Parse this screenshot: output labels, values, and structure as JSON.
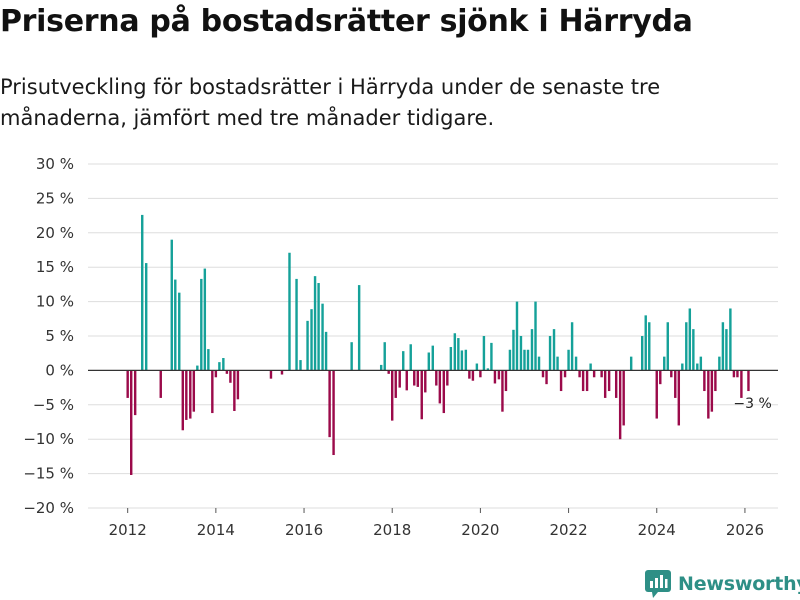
{
  "header": {
    "title": "Priserna på bostadsrätter sjönk i Härryda",
    "subtitle": "Prisutveckling för bostadsrätter i Härryda under de senaste tre månaderna, jämfört med tre månader tidigare."
  },
  "brand": {
    "name": "Newsworthy",
    "color": "#2e8f86"
  },
  "colors": {
    "positive": "#15a199",
    "negative": "#9b0a4a",
    "grid": "#dddddd",
    "zero_line": "#333333"
  },
  "chart_data": {
    "type": "bar",
    "title": "Priserna på bostadsrätter sjönk i Härryda",
    "xlabel": "",
    "ylabel": "",
    "xlim": [
      2011.1,
      2026.75
    ],
    "ylim": [
      -20,
      30
    ],
    "y_ticks": [
      30,
      25,
      20,
      15,
      10,
      5,
      0,
      -5,
      -10,
      -15,
      -20
    ],
    "y_tick_labels": [
      "30 %",
      "25 %",
      "20 %",
      "15 %",
      "10 %",
      "5 %",
      "0 %",
      "−5 %",
      "−10 %",
      "−15 %",
      "−20 %"
    ],
    "x_ticks": [
      2012,
      2014,
      2016,
      2018,
      2020,
      2022,
      2024,
      2026
    ],
    "x_tick_labels": [
      "2012",
      "2014",
      "2016",
      "2018",
      "2020",
      "2022",
      "2024",
      "2026"
    ],
    "grid": true,
    "unit": "%",
    "bar_width_years": 0.055,
    "annotation": {
      "text": "−3 %",
      "x": 2025.92,
      "y": -3
    },
    "series": [
      {
        "name": "Prisutveckling",
        "points": [
          [
            2012.0,
            -4
          ],
          [
            2012.08,
            -15.2
          ],
          [
            2012.17,
            -6.5
          ],
          [
            2012.33,
            22.6
          ],
          [
            2012.42,
            15.6
          ],
          [
            2012.75,
            -4
          ],
          [
            2013.0,
            19.0
          ],
          [
            2013.08,
            13.2
          ],
          [
            2013.17,
            11.3
          ],
          [
            2013.25,
            -8.7
          ],
          [
            2013.33,
            -7.2
          ],
          [
            2013.42,
            -7.0
          ],
          [
            2013.5,
            -6.0
          ],
          [
            2013.58,
            0.7
          ],
          [
            2013.67,
            13.3
          ],
          [
            2013.75,
            14.8
          ],
          [
            2013.83,
            3.1
          ],
          [
            2013.92,
            -6.2
          ],
          [
            2014.0,
            -1.0
          ],
          [
            2014.08,
            1.2
          ],
          [
            2014.17,
            1.8
          ],
          [
            2014.25,
            -0.5
          ],
          [
            2014.33,
            -1.8
          ],
          [
            2014.42,
            -5.9
          ],
          [
            2014.5,
            -4.2
          ],
          [
            2015.25,
            -1.2
          ],
          [
            2015.5,
            -0.6
          ],
          [
            2015.67,
            17.1
          ],
          [
            2015.83,
            13.3
          ],
          [
            2015.92,
            1.5
          ],
          [
            2016.08,
            7.2
          ],
          [
            2016.17,
            8.9
          ],
          [
            2016.25,
            13.7
          ],
          [
            2016.33,
            12.7
          ],
          [
            2016.42,
            9.7
          ],
          [
            2016.5,
            5.6
          ],
          [
            2016.58,
            -9.7
          ],
          [
            2016.67,
            -12.3
          ],
          [
            2017.08,
            4.1
          ],
          [
            2017.25,
            12.4
          ],
          [
            2017.75,
            0.8
          ],
          [
            2017.83,
            4.1
          ],
          [
            2017.92,
            -0.5
          ],
          [
            2018.0,
            -7.3
          ],
          [
            2018.08,
            -4.0
          ],
          [
            2018.17,
            -2.5
          ],
          [
            2018.25,
            2.8
          ],
          [
            2018.33,
            -2.9
          ],
          [
            2018.42,
            3.8
          ],
          [
            2018.5,
            -2.2
          ],
          [
            2018.58,
            -2.4
          ],
          [
            2018.67,
            -7.1
          ],
          [
            2018.75,
            -3.2
          ],
          [
            2018.83,
            2.6
          ],
          [
            2018.92,
            3.6
          ],
          [
            2019.0,
            -2.2
          ],
          [
            2019.08,
            -4.8
          ],
          [
            2019.17,
            -6.2
          ],
          [
            2019.25,
            -2.2
          ],
          [
            2019.33,
            3.4
          ],
          [
            2019.42,
            5.4
          ],
          [
            2019.5,
            4.7
          ],
          [
            2019.58,
            2.9
          ],
          [
            2019.67,
            3.0
          ],
          [
            2019.75,
            -1.2
          ],
          [
            2019.83,
            -1.5
          ],
          [
            2019.92,
            1.0
          ],
          [
            2020.0,
            -1.0
          ],
          [
            2020.08,
            5.0
          ],
          [
            2020.17,
            0.3
          ],
          [
            2020.25,
            4.0
          ],
          [
            2020.33,
            -1.9
          ],
          [
            2020.42,
            -1.3
          ],
          [
            2020.5,
            -6.0
          ],
          [
            2020.58,
            -3.0
          ],
          [
            2020.67,
            3.0
          ],
          [
            2020.75,
            5.9
          ],
          [
            2020.83,
            10.0
          ],
          [
            2020.92,
            5.0
          ],
          [
            2021.0,
            3.0
          ],
          [
            2021.08,
            3.0
          ],
          [
            2021.17,
            6.0
          ],
          [
            2021.25,
            10.0
          ],
          [
            2021.33,
            2.0
          ],
          [
            2021.42,
            -1.0
          ],
          [
            2021.5,
            -2.0
          ],
          [
            2021.58,
            5.0
          ],
          [
            2021.67,
            6.0
          ],
          [
            2021.75,
            2.0
          ],
          [
            2021.83,
            -3.0
          ],
          [
            2021.92,
            -1.0
          ],
          [
            2022.0,
            3.0
          ],
          [
            2022.08,
            7.0
          ],
          [
            2022.17,
            2.0
          ],
          [
            2022.25,
            -1.0
          ],
          [
            2022.33,
            -3.0
          ],
          [
            2022.42,
            -3.0
          ],
          [
            2022.5,
            1.0
          ],
          [
            2022.58,
            -1.0
          ],
          [
            2022.75,
            -1.0
          ],
          [
            2022.83,
            -4.0
          ],
          [
            2022.92,
            -3.0
          ],
          [
            2023.08,
            -4.0
          ],
          [
            2023.17,
            -10.0
          ],
          [
            2023.25,
            -8.0
          ],
          [
            2023.42,
            2.0
          ],
          [
            2023.67,
            5.0
          ],
          [
            2023.75,
            8.0
          ],
          [
            2023.83,
            7.0
          ],
          [
            2024.0,
            -7.0
          ],
          [
            2024.08,
            -2.0
          ],
          [
            2024.17,
            2.0
          ],
          [
            2024.25,
            7.0
          ],
          [
            2024.33,
            -1.0
          ],
          [
            2024.42,
            -4.0
          ],
          [
            2024.5,
            -8.0
          ],
          [
            2024.58,
            1.0
          ],
          [
            2024.67,
            7.0
          ],
          [
            2024.75,
            9.0
          ],
          [
            2024.83,
            6.0
          ],
          [
            2024.92,
            1.0
          ],
          [
            2025.0,
            2.0
          ],
          [
            2025.08,
            -3.0
          ],
          [
            2025.17,
            -7.0
          ],
          [
            2025.25,
            -6.0
          ],
          [
            2025.33,
            -3.0
          ],
          [
            2025.42,
            2.0
          ],
          [
            2025.5,
            7.0
          ],
          [
            2025.58,
            6.0
          ],
          [
            2025.67,
            9.0
          ],
          [
            2025.75,
            -1.0
          ],
          [
            2025.83,
            -1.0
          ],
          [
            2025.92,
            -4.0
          ],
          [
            2026.08,
            -3.0
          ]
        ]
      }
    ]
  }
}
